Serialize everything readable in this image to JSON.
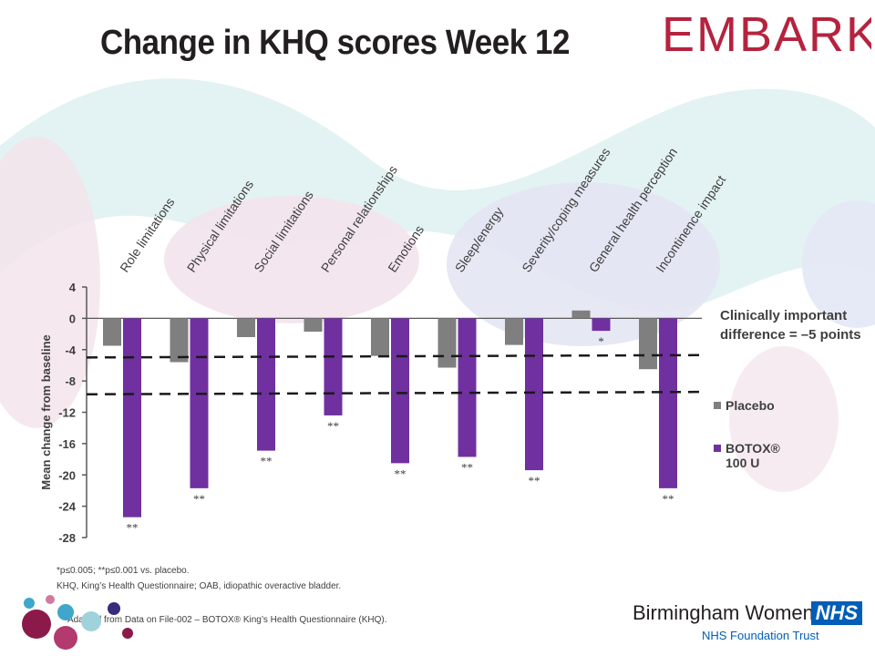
{
  "slide": {
    "title": "Change in KHQ scores Week 12",
    "logo_text": "EMBARK",
    "clinical_note": "Clinically important difference = –5 points",
    "footnote_1": "*p≤0.005; **p≤0.001 vs. placebo.",
    "footnote_2": "KHQ, King’s Health Questionnaire; OAB, idiopathic overactive bladder.",
    "footnote_3": "Adapted from Data on File-002 – BOTOX® King’s Health Questionnaire (KHQ).",
    "org_name": "Birmingham Women's",
    "org_badge": "NHS",
    "org_trust": "NHS Foundation Trust",
    "colors": {
      "placebo": "#7f7f7f",
      "botox": "#7030a0",
      "brand": "#b5233e",
      "nhs": "#005eb8"
    }
  },
  "chart_data": {
    "type": "bar",
    "ylabel": "Mean change from baseline",
    "ylim": [
      -28,
      4
    ],
    "yticks": [
      4,
      0,
      -4,
      -8,
      -12,
      -16,
      -20,
      -24,
      -28
    ],
    "categories": [
      "Role limitations",
      "Physical limitations",
      "Social limitations",
      "Personal relationships",
      "Emotions",
      "Sleep/energy",
      "Severity/coping measures",
      "General health perception",
      "Incontinence impact"
    ],
    "series": [
      {
        "name": "Placebo",
        "values": [
          -3.5,
          -5.6,
          -2.4,
          -1.7,
          -4.8,
          -6.3,
          -3.4,
          1.0,
          -6.5
        ]
      },
      {
        "name": "BOTOX® 100 U",
        "values": [
          -25.4,
          -21.7,
          -16.9,
          -12.4,
          -18.5,
          -17.7,
          -19.4,
          -1.6,
          -21.7
        ]
      }
    ],
    "significance": [
      "**",
      "**",
      "**",
      "**",
      "**",
      "**",
      "**",
      "*",
      "**"
    ],
    "reference_lines": [
      -5,
      -9.7
    ],
    "legend_entries": [
      "Placebo",
      "BOTOX® 100 U"
    ],
    "legend_position": "right"
  }
}
